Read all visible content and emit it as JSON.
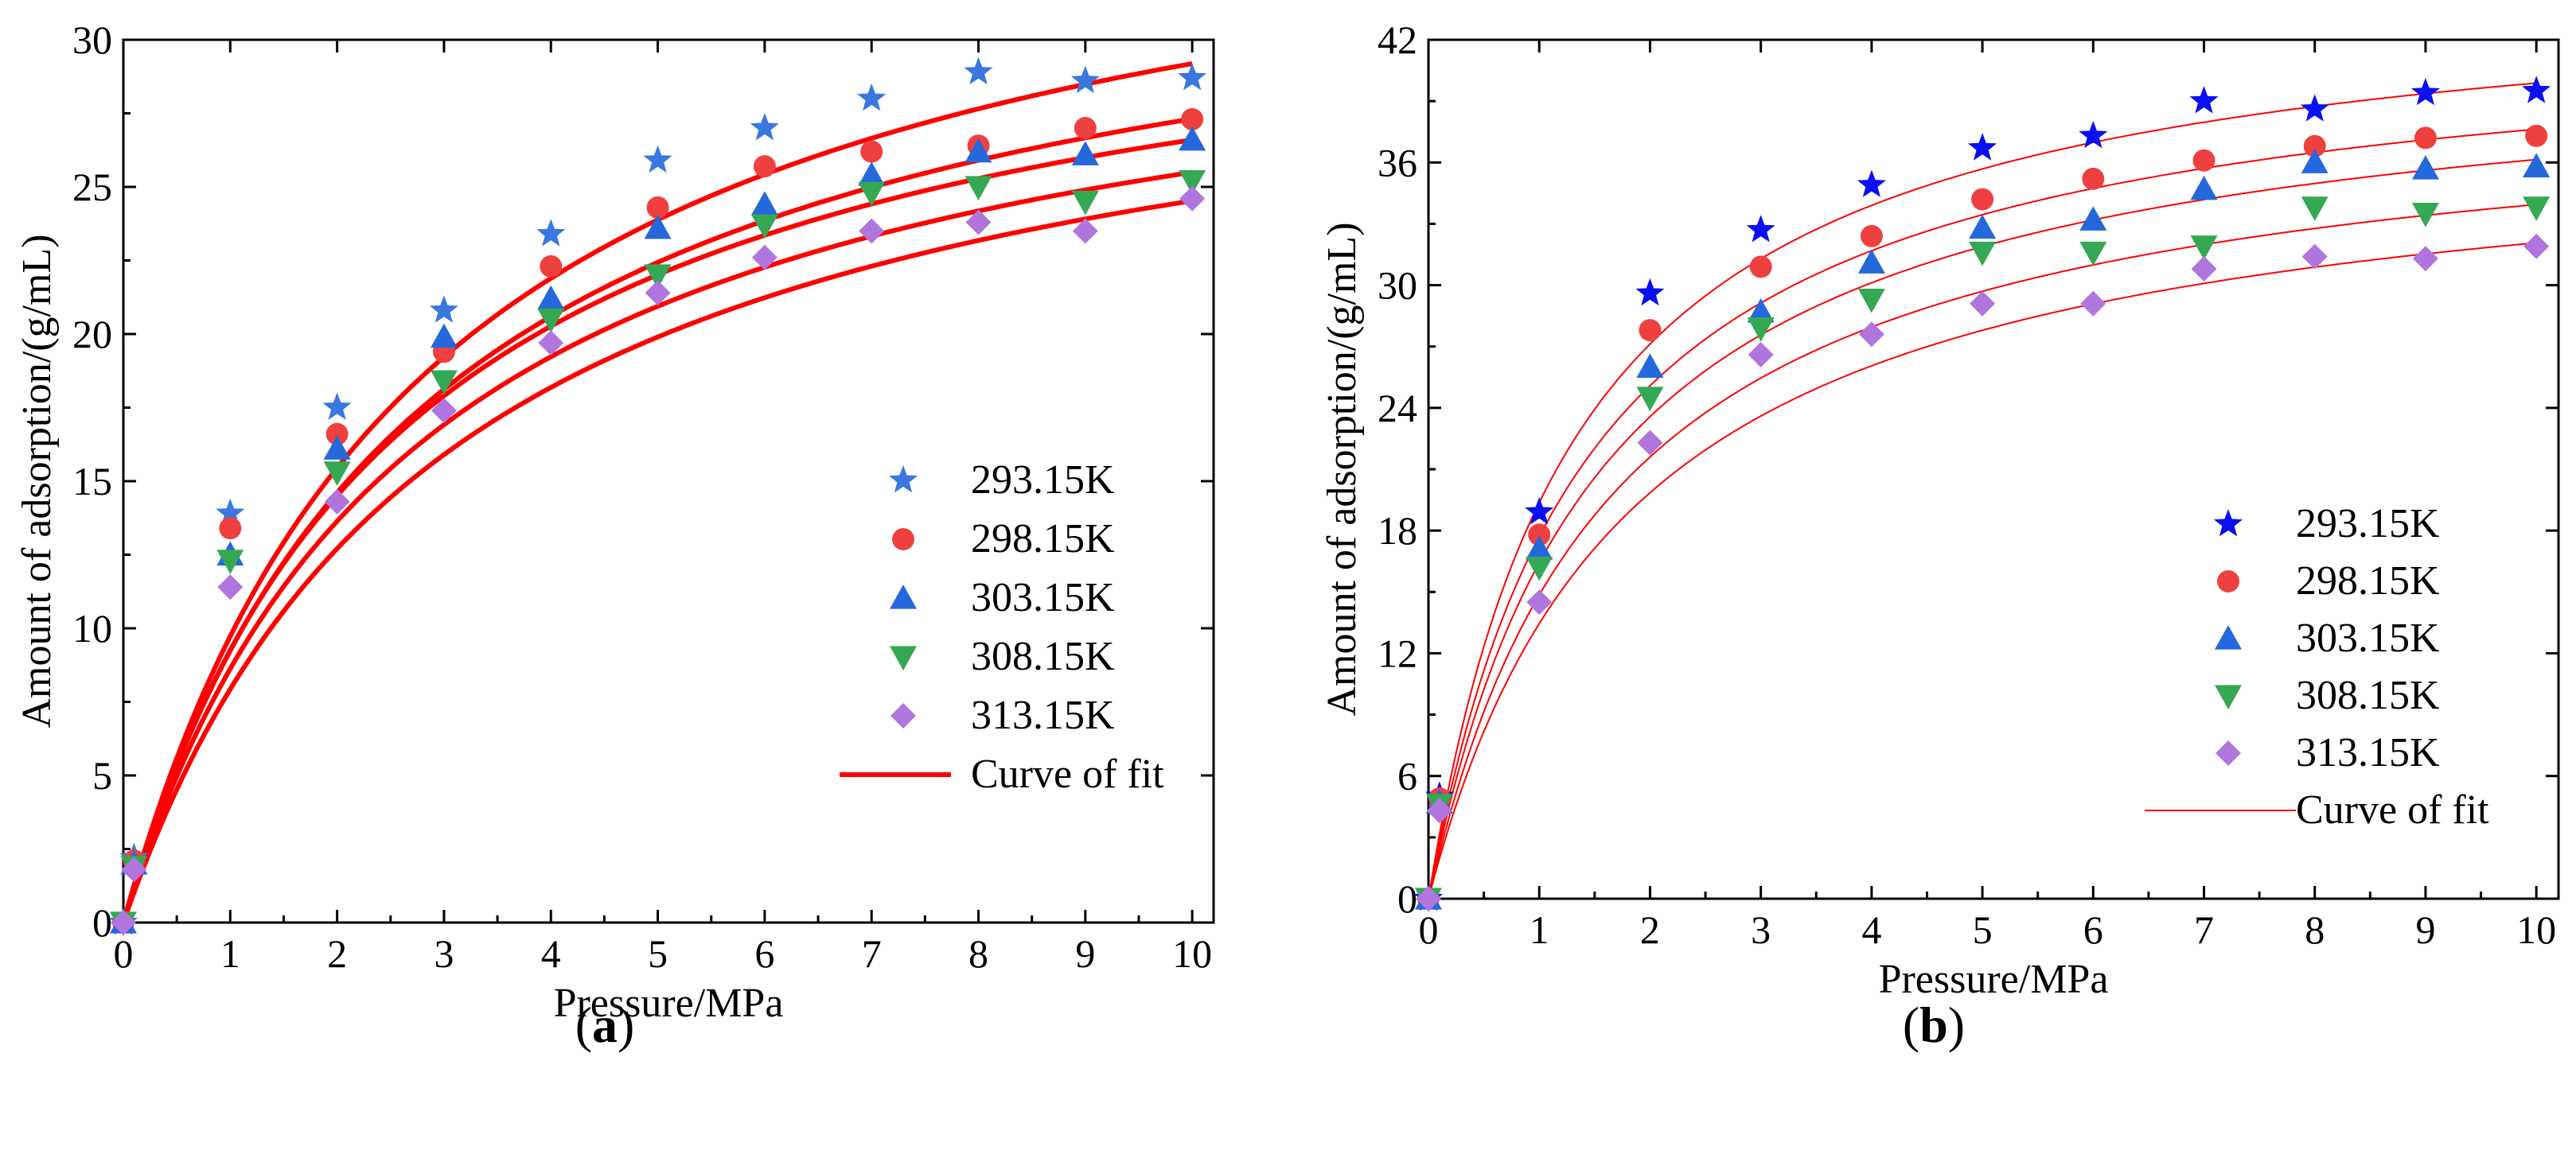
{
  "figure": {
    "panels": [
      {
        "caption_open": "(",
        "caption_letter": "a",
        "caption_close": ")",
        "fit_line_style": "thick",
        "legend_fit_label": "Curve of fit"
      },
      {
        "caption_open": "(",
        "caption_letter": "b",
        "caption_close": ")",
        "fit_line_style": "thin",
        "legend_fit_label": "Curve of fit"
      }
    ]
  },
  "colors": {
    "fit_line": "#ff0000",
    "s293": "#3a78e0",
    "s293_b": "#0a10f0",
    "s298": "#ef4040",
    "s303": "#2468dc",
    "s308": "#34a853",
    "s313": "#b076de"
  },
  "chart_data": [
    {
      "type": "scatter",
      "title": "",
      "xlabel": "Pressure/MPa",
      "ylabel": "Amount of adsorption/(g/mL)",
      "xlim": [
        0,
        10.2
      ],
      "ylim": [
        0,
        30
      ],
      "xticks": [
        0,
        1,
        2,
        3,
        4,
        5,
        6,
        7,
        8,
        9,
        10
      ],
      "yticks": [
        0,
        5,
        10,
        15,
        20,
        25,
        30
      ],
      "x": [
        0,
        0.1,
        1,
        2,
        3,
        4,
        5,
        6,
        7,
        8,
        9,
        10
      ],
      "series": [
        {
          "name": "293.15K",
          "marker": "star",
          "values": [
            0,
            2.2,
            13.9,
            17.5,
            20.8,
            23.4,
            25.9,
            27.0,
            28.0,
            28.9,
            28.6,
            28.7
          ],
          "fit": {
            "qm": 37.53,
            "b": 0.35
          }
        },
        {
          "name": "298.15K",
          "marker": "circle",
          "values": [
            0,
            2.1,
            13.4,
            16.6,
            19.4,
            22.3,
            24.3,
            25.7,
            26.2,
            26.4,
            27.0,
            27.3
          ],
          "fit": {
            "qm": 34.9,
            "b": 0.36
          }
        },
        {
          "name": "303.15K",
          "marker": "triangle-up",
          "values": [
            0,
            2.0,
            12.5,
            16.1,
            19.9,
            21.2,
            23.6,
            24.4,
            25.4,
            26.2,
            26.1,
            26.6
          ],
          "fit": {
            "qm": 33.6,
            "b": 0.38
          }
        },
        {
          "name": "308.15K",
          "marker": "triangle-down",
          "values": [
            0,
            1.9,
            12.3,
            15.3,
            18.4,
            20.5,
            22.0,
            23.7,
            24.8,
            25.0,
            24.5,
            25.2
          ],
          "fit": {
            "qm": 32.58,
            "b": 0.36
          }
        },
        {
          "name": "313.15K",
          "marker": "diamond",
          "values": [
            0,
            1.8,
            11.4,
            14.3,
            17.4,
            19.7,
            21.4,
            22.6,
            23.5,
            23.8,
            23.5,
            24.6
          ],
          "fit": {
            "qm": 31.96,
            "b": 0.33
          }
        }
      ],
      "legend": {
        "position": "lower-right",
        "fit_label": "Curve of fit"
      }
    },
    {
      "type": "scatter",
      "title": "",
      "xlabel": "Pressure/MPa",
      "ylabel": "Amount of adsorption/(g/mL)",
      "xlim": [
        0,
        10.2
      ],
      "ylim": [
        0,
        42
      ],
      "xticks": [
        0,
        1,
        2,
        3,
        4,
        5,
        6,
        7,
        8,
        9,
        10
      ],
      "yticks": [
        0,
        6,
        12,
        18,
        24,
        30,
        36,
        42
      ],
      "x": [
        0,
        0.1,
        1,
        2,
        3,
        4,
        5,
        6,
        7,
        8,
        9,
        10
      ],
      "series": [
        {
          "name": "293.15K",
          "marker": "star",
          "values": [
            0,
            5.0,
            18.9,
            29.6,
            32.7,
            34.9,
            36.7,
            37.3,
            39.0,
            38.6,
            39.4,
            39.5
          ],
          "fit": {
            "qm": 45.2,
            "b": 0.75
          }
        },
        {
          "name": "298.15K",
          "marker": "circle",
          "values": [
            0,
            4.9,
            17.8,
            27.8,
            30.9,
            32.4,
            34.2,
            35.2,
            36.1,
            36.8,
            37.2,
            37.3
          ],
          "fit": {
            "qm": 43.0,
            "b": 0.7
          }
        },
        {
          "name": "303.15K",
          "marker": "triangle-up",
          "values": [
            0,
            4.7,
            17.1,
            26.0,
            28.7,
            31.1,
            32.8,
            33.2,
            34.7,
            36.0,
            35.7,
            35.8
          ],
          "fit": {
            "qm": 41.7,
            "b": 0.65
          }
        },
        {
          "name": "308.15K",
          "marker": "triangle-down",
          "values": [
            0,
            4.6,
            16.2,
            24.5,
            27.9,
            29.3,
            31.6,
            31.6,
            31.9,
            33.8,
            33.5,
            33.8
          ],
          "fit": {
            "qm": 39.6,
            "b": 0.6
          }
        },
        {
          "name": "313.15K",
          "marker": "diamond",
          "values": [
            0,
            4.3,
            14.5,
            22.3,
            26.6,
            27.6,
            29.1,
            29.1,
            30.8,
            31.4,
            31.3,
            31.9
          ],
          "fit": {
            "qm": 37.9,
            "b": 0.55
          }
        }
      ],
      "legend": {
        "position": "lower-right",
        "fit_label": "Curve of fit"
      }
    }
  ]
}
